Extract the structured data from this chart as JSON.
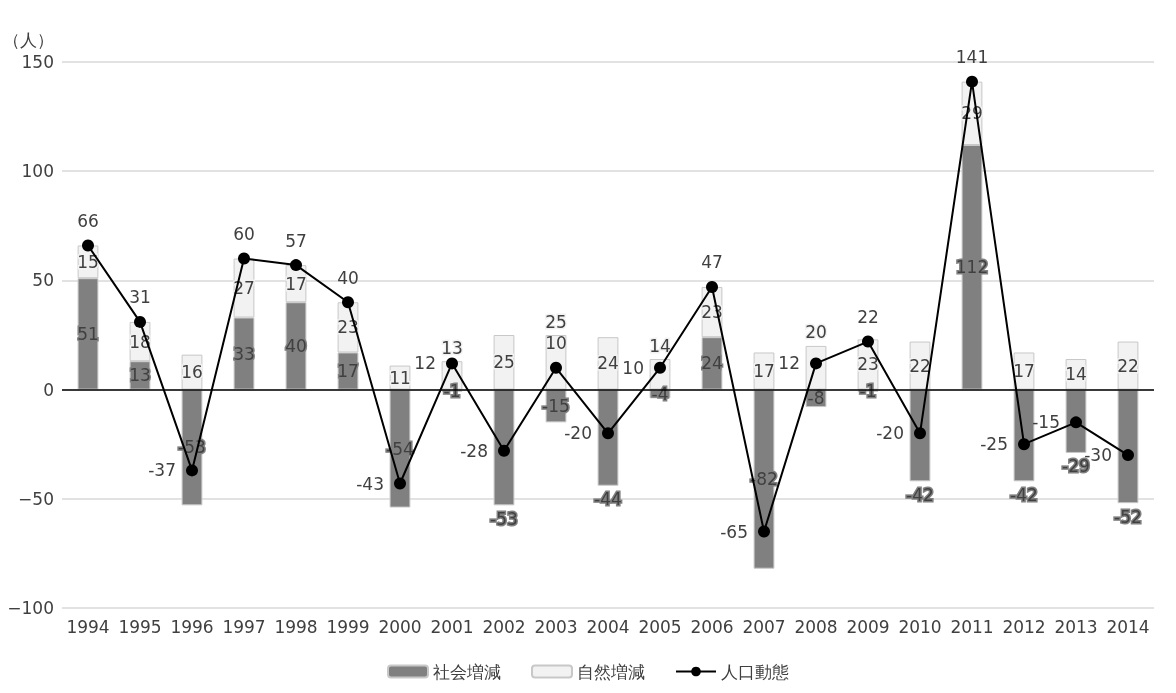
{
  "chart_data": {
    "type": "bar",
    "stacked": true,
    "ylabel": "（人）",
    "categories": [
      "1994",
      "1995",
      "1996",
      "1997",
      "1998",
      "1999",
      "2000",
      "2001",
      "2002",
      "2003",
      "2004",
      "2005",
      "2006",
      "2007",
      "2008",
      "2009",
      "2010",
      "2011",
      "2012",
      "2013",
      "2014"
    ],
    "series": [
      {
        "name": "社会増減",
        "color": "#808080",
        "values": [
          51,
          13,
          -53,
          33,
          40,
          17,
          -54,
          -1,
          -53,
          -15,
          -44,
          -4,
          24,
          -82,
          -8,
          -1,
          -42,
          112,
          -42,
          -29,
          -52
        ]
      },
      {
        "name": "自然増減",
        "color": "#f2f2f2",
        "values": [
          15,
          18,
          16,
          27,
          17,
          23,
          11,
          13,
          25,
          25,
          24,
          14,
          23,
          17,
          20,
          23,
          22,
          29,
          17,
          14,
          22
        ]
      },
      {
        "name": "人口動態",
        "type": "line",
        "color": "#000000",
        "marker": "circle",
        "values": [
          66,
          31,
          -37,
          60,
          57,
          40,
          -43,
          12,
          -28,
          10,
          -20,
          10,
          47,
          -65,
          12,
          22,
          -20,
          141,
          -25,
          -15,
          -30
        ]
      }
    ],
    "ylim": [
      -100,
      150
    ],
    "yticks": [
      -100,
      -50,
      0,
      50,
      100,
      150
    ],
    "grid": "y",
    "legend": "bottom",
    "data_labels": true
  }
}
